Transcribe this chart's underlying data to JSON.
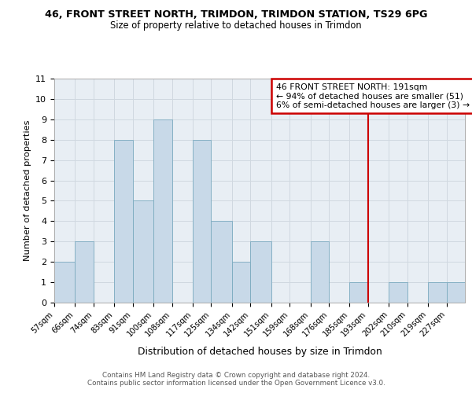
{
  "title": "46, FRONT STREET NORTH, TRIMDON, TRIMDON STATION, TS29 6PG",
  "subtitle": "Size of property relative to detached houses in Trimdon",
  "xlabel": "Distribution of detached houses by size in Trimdon",
  "ylabel": "Number of detached properties",
  "bar_labels": [
    "57sqm",
    "66sqm",
    "74sqm",
    "83sqm",
    "91sqm",
    "100sqm",
    "108sqm",
    "117sqm",
    "125sqm",
    "134sqm",
    "142sqm",
    "151sqm",
    "159sqm",
    "168sqm",
    "176sqm",
    "185sqm",
    "193sqm",
    "202sqm",
    "210sqm",
    "219sqm",
    "227sqm"
  ],
  "bin_edges": [
    57,
    66,
    74,
    83,
    91,
    100,
    108,
    117,
    125,
    134,
    142,
    151,
    159,
    168,
    176,
    185,
    193,
    202,
    210,
    219,
    227,
    235
  ],
  "bar_heights": [
    2,
    3,
    0,
    8,
    5,
    9,
    0,
    8,
    4,
    2,
    3,
    0,
    0,
    3,
    0,
    1,
    0,
    1,
    0,
    1,
    1
  ],
  "bar_color": "#c8d9e8",
  "bar_edge_color": "#7aaabf",
  "grid_color": "#d0d8e0",
  "vline_x": 193,
  "vline_color": "#cc0000",
  "annotation_text": "46 FRONT STREET NORTH: 191sqm\n← 94% of detached houses are smaller (51)\n6% of semi-detached houses are larger (3) →",
  "annotation_box_color": "#ffffff",
  "annotation_box_edge": "#cc0000",
  "footer": "Contains HM Land Registry data © Crown copyright and database right 2024.\nContains public sector information licensed under the Open Government Licence v3.0.",
  "ylim": [
    0,
    11
  ],
  "yticks": [
    0,
    1,
    2,
    3,
    4,
    5,
    6,
    7,
    8,
    9,
    10,
    11
  ],
  "bg_color": "#e8eef4"
}
